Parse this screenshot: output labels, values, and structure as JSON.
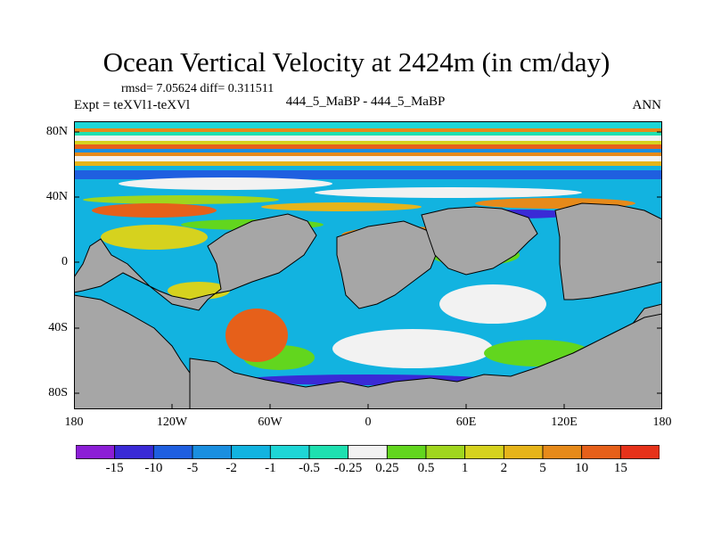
{
  "plot": {
    "title": "Ocean Vertical Velocity at 2424m (in cm/day)",
    "stats": "rmsd= 7.05624 diff= 0.311511",
    "expt": "Expt = teXVl1-teXVl",
    "subtitle": "444_5_MaBP - 444_5_MaBP",
    "season": "ANN"
  },
  "axes": {
    "lat_ticks": [
      "80N",
      "40N",
      "0",
      "40S",
      "80S"
    ],
    "lon_ticks": [
      "180",
      "120W",
      "60W",
      "0",
      "60E",
      "120E",
      "180"
    ]
  },
  "colorbar": {
    "labels": [
      "-15",
      "-10",
      "-5",
      "-2",
      "-1",
      "-0.5",
      "-0.25",
      "0.25",
      "0.5",
      "1",
      "2",
      "5",
      "10",
      "15"
    ],
    "colors": [
      "#8c1ed6",
      "#3a2ad6",
      "#1f5fe0",
      "#1a8fe0",
      "#12b3e0",
      "#1ed6d6",
      "#1ee0b0",
      "#f2f2f2",
      "#62d61e",
      "#a0d61e",
      "#d6d21e",
      "#e6b41a",
      "#e68a1a",
      "#e6601a",
      "#e6321a"
    ]
  },
  "colors": {
    "land": "#a6a6a6",
    "coast": "#000000"
  }
}
